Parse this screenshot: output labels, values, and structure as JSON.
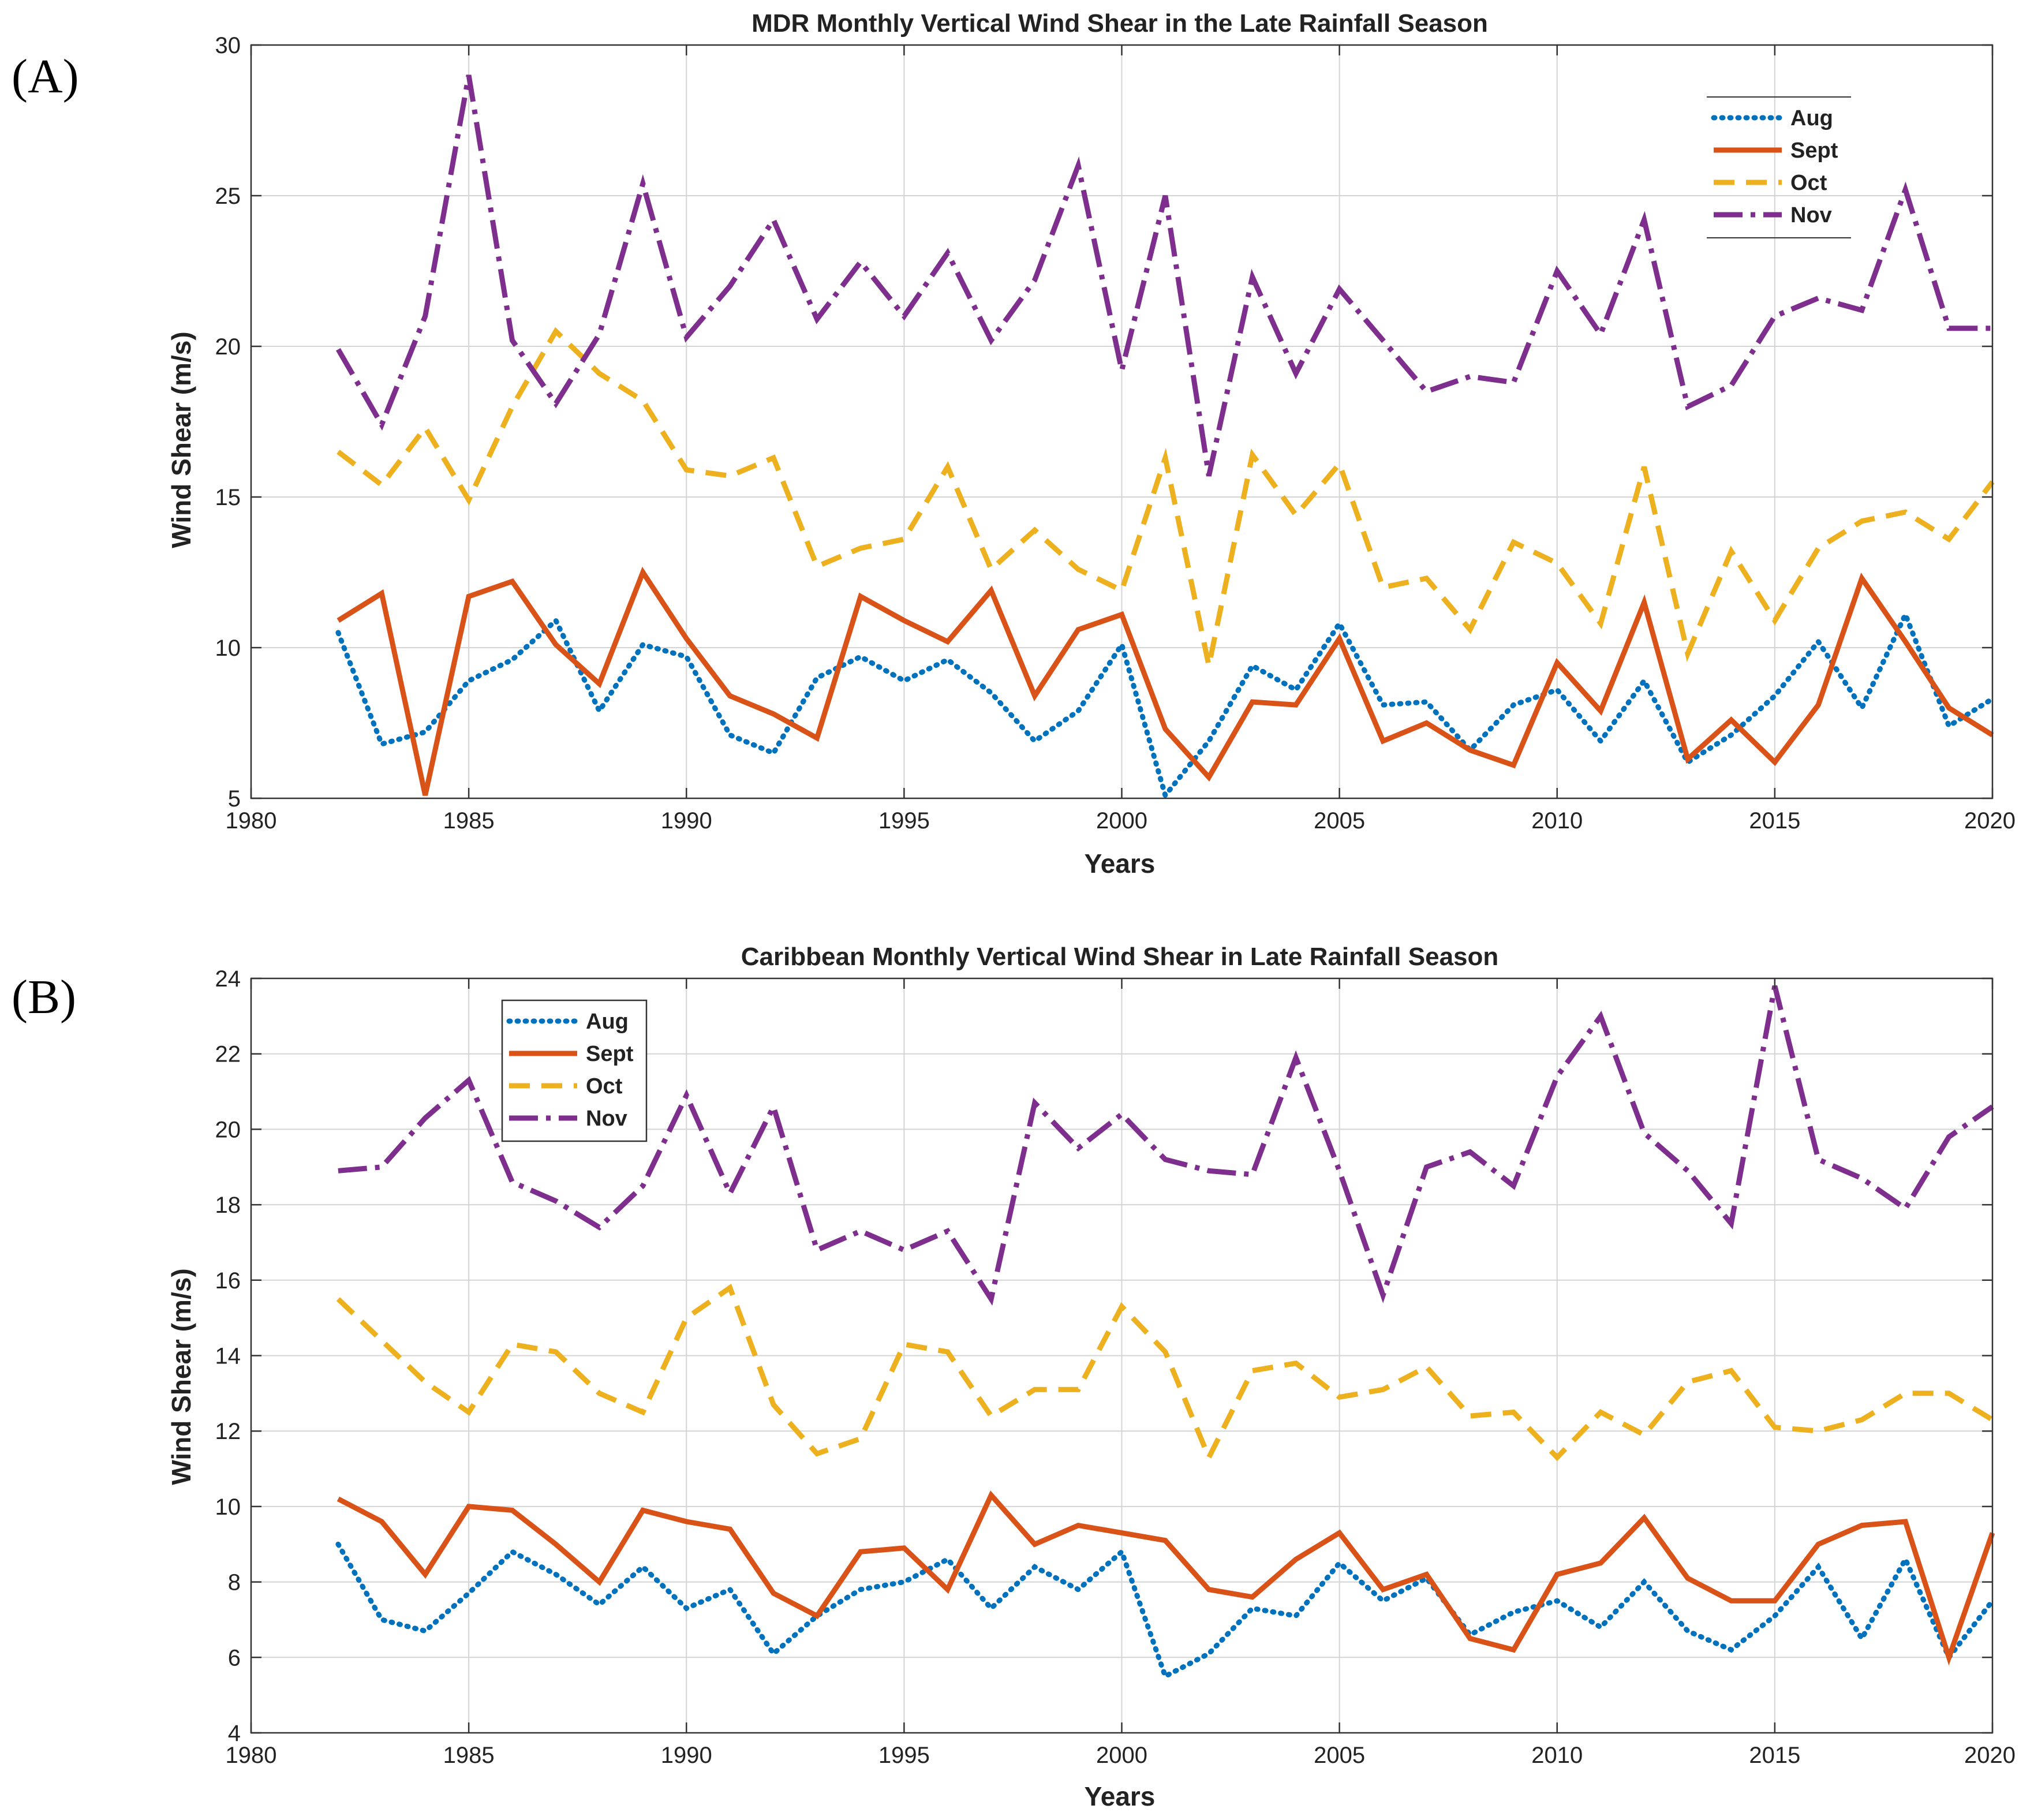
{
  "chart_data": [
    {
      "type": "line",
      "panel": "(A)",
      "title": "MDR Monthly Vertical Wind Shear in the Late Rainfall Season",
      "xlabel": "Years",
      "ylabel": "Wind Shear (m/s)",
      "xlim": [
        1980,
        2020
      ],
      "ylim": [
        5,
        30
      ],
      "xticks": [
        1980,
        1985,
        1990,
        1995,
        2000,
        2005,
        2010,
        2015,
        2020
      ],
      "yticks": [
        5,
        10,
        15,
        20,
        25,
        30
      ],
      "grid": true,
      "legend_position": "top-right",
      "x": [
        1982,
        1983,
        1984,
        1985,
        1986,
        1987,
        1988,
        1989,
        1990,
        1991,
        1992,
        1993,
        1994,
        1995,
        1996,
        1997,
        1998,
        1999,
        2000,
        2001,
        2002,
        2003,
        2004,
        2005,
        2006,
        2007,
        2008,
        2009,
        2010,
        2011,
        2012,
        2013,
        2014,
        2015,
        2016,
        2017,
        2018,
        2019,
        2020
      ],
      "series": [
        {
          "name": "Aug",
          "color": "#0072BD",
          "style": "dotted",
          "values": [
            10.5,
            6.8,
            7.2,
            8.9,
            9.6,
            10.9,
            7.9,
            10.1,
            9.7,
            7.1,
            6.5,
            9.0,
            9.7,
            8.9,
            9.6,
            8.5,
            6.9,
            7.9,
            10.1,
            5.1,
            6.9,
            9.4,
            8.6,
            10.8,
            8.1,
            8.2,
            6.6,
            8.1,
            8.6,
            6.9,
            8.9,
            6.2,
            7.1,
            8.4,
            10.2,
            8.0,
            11.1,
            7.4,
            8.3
          ]
        },
        {
          "name": "Sept",
          "color": "#D95319",
          "style": "solid",
          "values": [
            10.9,
            11.8,
            5.1,
            11.7,
            12.2,
            10.1,
            8.8,
            12.5,
            10.3,
            8.4,
            7.8,
            7.0,
            11.7,
            10.9,
            10.2,
            11.9,
            8.4,
            10.6,
            11.1,
            7.3,
            5.7,
            8.2,
            8.1,
            10.3,
            6.9,
            7.5,
            6.6,
            6.1,
            9.5,
            7.9,
            11.5,
            6.3,
            7.6,
            6.2,
            8.1,
            12.3,
            10.2,
            8.0,
            7.1
          ]
        },
        {
          "name": "Oct",
          "color": "#EDB120",
          "style": "dashed",
          "values": [
            16.5,
            15.4,
            17.3,
            14.9,
            18.0,
            20.5,
            19.1,
            18.2,
            15.9,
            15.7,
            16.3,
            12.7,
            13.3,
            13.6,
            16.0,
            12.6,
            13.9,
            12.6,
            11.9,
            16.3,
            9.4,
            16.4,
            14.4,
            16.1,
            12.0,
            12.3,
            10.6,
            13.5,
            12.8,
            10.8,
            16.0,
            9.8,
            13.2,
            10.9,
            13.3,
            14.2,
            14.5,
            13.6,
            15.5
          ]
        },
        {
          "name": "Nov",
          "color": "#7E2F8E",
          "style": "dashdot",
          "values": [
            19.9,
            17.4,
            21.0,
            29.0,
            20.2,
            18.1,
            20.4,
            25.4,
            20.3,
            22.0,
            24.2,
            20.9,
            22.8,
            21.0,
            23.1,
            20.2,
            22.2,
            26.0,
            19.2,
            25.0,
            15.7,
            22.3,
            19.1,
            21.9,
            20.2,
            18.5,
            19.0,
            18.8,
            22.5,
            20.4,
            24.2,
            18.0,
            18.7,
            21.0,
            21.6,
            21.2,
            25.2,
            20.6,
            20.6
          ]
        }
      ]
    },
    {
      "type": "line",
      "panel": "(B)",
      "title": "Caribbean Monthly Vertical Wind Shear in Late Rainfall Season",
      "xlabel": "Years",
      "ylabel": "Wind Shear (m/s)",
      "xlim": [
        1980,
        2020
      ],
      "ylim": [
        4,
        24
      ],
      "xticks": [
        1980,
        1985,
        1990,
        1995,
        2000,
        2005,
        2010,
        2015,
        2020
      ],
      "yticks": [
        4,
        6,
        8,
        10,
        12,
        14,
        16,
        18,
        20,
        22,
        24
      ],
      "grid": true,
      "legend_position": "top-left",
      "x": [
        1982,
        1983,
        1984,
        1985,
        1986,
        1987,
        1988,
        1989,
        1990,
        1991,
        1992,
        1993,
        1994,
        1995,
        1996,
        1997,
        1998,
        1999,
        2000,
        2001,
        2002,
        2003,
        2004,
        2005,
        2006,
        2007,
        2008,
        2009,
        2010,
        2011,
        2012,
        2013,
        2014,
        2015,
        2016,
        2017,
        2018,
        2019,
        2020
      ],
      "series": [
        {
          "name": "Aug",
          "color": "#0072BD",
          "style": "dotted",
          "values": [
            9.0,
            7.0,
            6.7,
            7.7,
            8.8,
            8.2,
            7.4,
            8.4,
            7.3,
            7.8,
            6.1,
            7.1,
            7.8,
            8.0,
            8.6,
            7.3,
            8.4,
            7.8,
            8.8,
            5.5,
            6.1,
            7.3,
            7.1,
            8.5,
            7.5,
            8.1,
            6.6,
            7.2,
            7.5,
            6.8,
            8.0,
            6.7,
            6.2,
            7.1,
            8.4,
            6.5,
            8.6,
            6.0,
            7.5
          ]
        },
        {
          "name": "Sept",
          "color": "#D95319",
          "style": "solid",
          "values": [
            10.2,
            9.6,
            8.2,
            10.0,
            9.9,
            9.0,
            8.0,
            9.9,
            9.6,
            9.4,
            7.7,
            7.1,
            8.8,
            8.9,
            7.8,
            10.3,
            9.0,
            9.5,
            9.3,
            9.1,
            7.8,
            7.6,
            8.6,
            9.3,
            7.8,
            8.2,
            6.5,
            6.2,
            8.2,
            8.5,
            9.7,
            8.1,
            7.5,
            7.5,
            9.0,
            9.5,
            9.6,
            6.0,
            9.3
          ]
        },
        {
          "name": "Oct",
          "color": "#EDB120",
          "style": "dashed",
          "values": [
            15.5,
            14.4,
            13.3,
            12.5,
            14.3,
            14.1,
            13.0,
            12.5,
            15.0,
            15.8,
            12.7,
            11.4,
            11.8,
            14.3,
            14.1,
            12.4,
            13.1,
            13.1,
            15.3,
            14.1,
            11.3,
            13.6,
            13.8,
            12.9,
            13.1,
            13.7,
            12.4,
            12.5,
            11.3,
            12.5,
            11.9,
            13.3,
            13.6,
            12.1,
            12.0,
            12.3,
            13.0,
            13.0,
            12.3
          ]
        },
        {
          "name": "Nov",
          "color": "#7E2F8E",
          "style": "dashdot",
          "values": [
            18.9,
            19.0,
            20.3,
            21.3,
            18.6,
            18.1,
            17.4,
            18.5,
            20.9,
            18.3,
            20.6,
            16.8,
            17.3,
            16.8,
            17.3,
            15.5,
            20.7,
            19.5,
            20.4,
            19.2,
            18.9,
            18.8,
            21.9,
            18.9,
            15.6,
            19.0,
            19.4,
            18.5,
            21.4,
            23.0,
            19.9,
            18.9,
            17.5,
            23.8,
            19.2,
            18.7,
            17.9,
            19.8,
            20.6
          ]
        }
      ]
    }
  ]
}
